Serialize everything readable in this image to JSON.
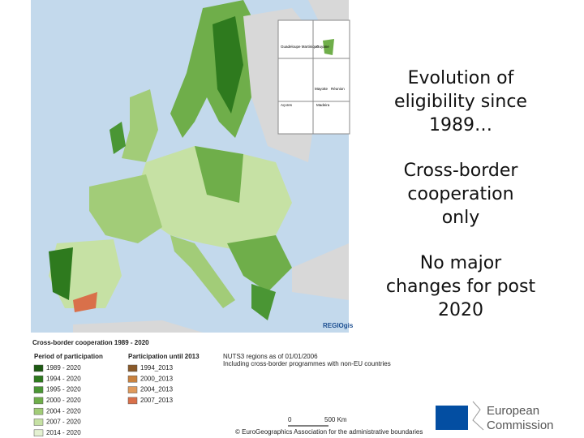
{
  "slide": {
    "map": {
      "inset_labels": [
        "Guadeloupe Martinique",
        "Guyane",
        "Mayotte",
        "Réunion",
        "Açores",
        "Madeira"
      ],
      "brand": "REGIOgis"
    },
    "legend": {
      "title": "Cross-border cooperation 1989 - 2020",
      "period_header": "Period of participation",
      "until_header": "Participation until 2013",
      "periods": [
        {
          "label": "1989 - 2020",
          "color": "#1d5a12"
        },
        {
          "label": "1994 - 2020",
          "color": "#2e7a1e"
        },
        {
          "label": "1995 - 2020",
          "color": "#4a9634"
        },
        {
          "label": "2000 - 2020",
          "color": "#6fae4a"
        },
        {
          "label": "2004 - 2020",
          "color": "#a2cc78"
        },
        {
          "label": "2007 - 2020",
          "color": "#c6e1a4"
        },
        {
          "label": "2014 - 2020",
          "color": "#e4f1d1"
        }
      ],
      "until": [
        {
          "label": "1994_2013",
          "color": "#8a5a2a"
        },
        {
          "label": "2000_2013",
          "color": "#c9823f"
        },
        {
          "label": "2004_2013",
          "color": "#e09a5c"
        },
        {
          "label": "2007_2013",
          "color": "#d9704a"
        }
      ],
      "notes": [
        "NUTS3 regions as of 01/01/2006",
        "Including cross-border programmes with non-EU countries"
      ],
      "scale": [
        "0",
        "500 Km"
      ],
      "copyright": "© EuroGeographics Association for the administrative boundaries"
    },
    "text_blocks": [
      [
        "Evolution of",
        "eligibility since",
        "1989…"
      ],
      [
        "Cross-border",
        "cooperation",
        "only"
      ],
      [
        "No major",
        "changes for post",
        "2020"
      ]
    ],
    "logo": [
      "European",
      "Commission"
    ]
  }
}
